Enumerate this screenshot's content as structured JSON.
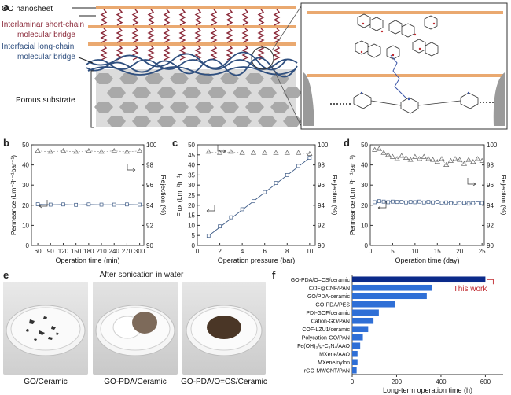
{
  "panel_a": {
    "letter": "a",
    "labels": {
      "go": "GO nanosheet",
      "short1": "Interlaminar short-chain",
      "short2": "molecular bridge",
      "long1": "Interfacial long-chain",
      "long2": "molecular bridge",
      "porous": "Porous substrate"
    },
    "colors": {
      "go_sheet": "#e8a868",
      "short_bridge": "#8b2a3a",
      "long_bridge": "#2f4f7f",
      "substrate": "#c8c8c8"
    }
  },
  "panel_b": {
    "letter": "b",
    "chart_data": {
      "type": "scatter",
      "xlabel": "Operation time (min)",
      "ylabel_left": "Permeance (Lm⁻²h⁻¹bar⁻¹)",
      "ylabel_right": "Rejection (%)",
      "x_ticks": [
        "60",
        "90",
        "120",
        "150",
        "180",
        "210",
        "240",
        "270",
        "300"
      ],
      "y_left_ticks": [
        "0",
        "10",
        "20",
        "30",
        "40",
        "50"
      ],
      "y_right_ticks": [
        "90",
        "92",
        "94",
        "96",
        "98",
        "100"
      ],
      "xlim": [
        45,
        310
      ],
      "ylim_left": [
        0,
        50
      ],
      "ylim_right": [
        90,
        100
      ],
      "series": [
        {
          "axis": "left",
          "marker": "square",
          "x": [
            60,
            90,
            120,
            150,
            180,
            210,
            240,
            270,
            300
          ],
          "y": [
            20.5,
            20.3,
            20.4,
            20.2,
            20.4,
            20.3,
            20.3,
            20.4,
            20.3
          ]
        },
        {
          "axis": "right",
          "marker": "triangle",
          "x": [
            60,
            90,
            120,
            150,
            180,
            210,
            240,
            270,
            300
          ],
          "y": [
            99.4,
            99.3,
            99.4,
            99.3,
            99.4,
            99.3,
            99.4,
            99.3,
            99.4
          ]
        }
      ]
    }
  },
  "panel_c": {
    "letter": "c",
    "chart_data": {
      "type": "scatter",
      "xlabel": "Operation pressure (bar)",
      "ylabel_left": "Flux (Lm⁻²h⁻¹)",
      "ylabel_right": "Rejection (%)",
      "x_ticks": [
        "0",
        "2",
        "4",
        "6",
        "8",
        "10"
      ],
      "y_left_ticks": [
        "0",
        "5",
        "10",
        "15",
        "20",
        "25",
        "30",
        "35",
        "40",
        "45",
        "50"
      ],
      "y_right_ticks": [
        "90",
        "92",
        "94",
        "96",
        "98",
        "100"
      ],
      "xlim": [
        0,
        10.5
      ],
      "ylim_left": [
        0,
        50
      ],
      "ylim_right": [
        90,
        100
      ],
      "series": [
        {
          "axis": "left",
          "marker": "square",
          "x": [
            1,
            2,
            3,
            4,
            5,
            6,
            7,
            8,
            9,
            10
          ],
          "y": [
            4.8,
            9.5,
            14,
            18,
            22,
            26.5,
            31,
            35,
            39.5,
            43.5
          ]
        },
        {
          "axis": "right",
          "marker": "triangle",
          "x": [
            1,
            2,
            3,
            4,
            5,
            6,
            7,
            8,
            9,
            10
          ],
          "y": [
            99.3,
            99.2,
            99.3,
            99.2,
            99.2,
            99.2,
            99.2,
            99.2,
            99.2,
            99.1
          ]
        }
      ]
    }
  },
  "panel_d": {
    "letter": "d",
    "chart_data": {
      "type": "scatter",
      "xlabel": "Operation time (day)",
      "ylabel_left": "Permeance (Lm⁻²h⁻¹bar⁻¹)",
      "ylabel_right": "Rejection (%)",
      "x_ticks": [
        "0",
        "5",
        "10",
        "15",
        "20",
        "25"
      ],
      "y_left_ticks": [
        "0",
        "10",
        "20",
        "30",
        "40",
        "50"
      ],
      "y_right_ticks": [
        "90",
        "92",
        "94",
        "96",
        "98",
        "100"
      ],
      "xlim": [
        0,
        25.5
      ],
      "ylim_left": [
        0,
        50
      ],
      "ylim_right": [
        90,
        100
      ],
      "series": [
        {
          "axis": "left",
          "marker": "square",
          "x": [
            1,
            2,
            3,
            4,
            5,
            6,
            7,
            8,
            9,
            10,
            11,
            12,
            13,
            14,
            15,
            16,
            17,
            18,
            19,
            20,
            21,
            22,
            23,
            24,
            25
          ],
          "y": [
            21.5,
            22,
            21.8,
            21.5,
            21.8,
            21.6,
            21.7,
            21.4,
            21.6,
            21.5,
            21.8,
            21.4,
            21.6,
            21.4,
            21.7,
            21.2,
            21.4,
            21.0,
            21.3,
            21.0,
            21.2,
            20.8,
            21.0,
            20.9,
            21.1
          ]
        },
        {
          "axis": "right",
          "marker": "triangle",
          "x": [
            1,
            2,
            3,
            4,
            5,
            6,
            7,
            8,
            9,
            10,
            11,
            12,
            13,
            14,
            15,
            16,
            17,
            18,
            19,
            20,
            21,
            22,
            23,
            24,
            25
          ],
          "y": [
            99.5,
            99.6,
            99.2,
            99.0,
            98.8,
            98.6,
            98.9,
            98.7,
            98.5,
            98.8,
            98.6,
            98.8,
            98.6,
            98.5,
            98.3,
            98.6,
            98.0,
            98.4,
            98.6,
            98.5,
            98.1,
            98.5,
            98.3,
            98.6,
            98.4
          ]
        }
      ]
    }
  },
  "panel_e": {
    "letter": "e",
    "title": "After sonication in water",
    "captions": [
      "GO/Ceramic",
      "GO-PDA/Ceramic",
      "GO-PDA/O=CS/Ceramic"
    ]
  },
  "panel_f": {
    "letter": "f",
    "chart_data": {
      "type": "bar",
      "orientation": "horizontal",
      "xlabel": "Long-term operation time (h)",
      "x_ticks": [
        "0",
        "200",
        "400",
        "600"
      ],
      "xlim": [
        0,
        680
      ],
      "categories": [
        "GO-PDA/O=CS/ceramic",
        "COF@CNF/PAN",
        "GO/PDA-ceramic",
        "GO-PDA/PES",
        "PDI-GOF/ceramic",
        "Cation-GO/PAN",
        "COF-LZU1/ceramic",
        "Polycation-GO/PAN",
        "Fe(OH)₃/g-C₃N₄/AAO",
        "MXene/AAO",
        "MXene/nylon",
        "rGO-MWCNT/PAN"
      ],
      "values": [
        600,
        360,
        336,
        192,
        120,
        96,
        72,
        48,
        36,
        24,
        24,
        20
      ],
      "annotation": "This work",
      "colors": {
        "highlight": "#0b2a8a",
        "bars": "#2f6fd6",
        "annotation": "#c0282d"
      }
    }
  }
}
